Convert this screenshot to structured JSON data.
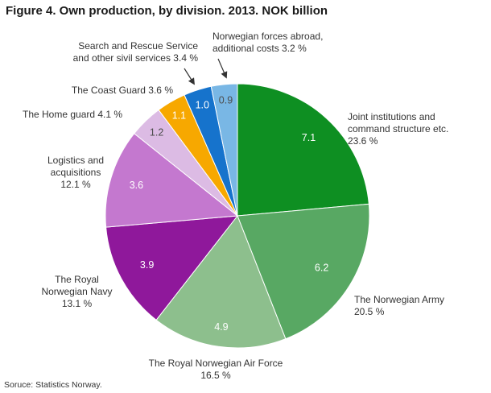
{
  "title": "Figure 4. Own production, by division. 2013. NOK billion",
  "source": "Soruce: Statistics Norway.",
  "chart_data": {
    "type": "pie",
    "title": "Figure 4. Own production, by division. 2013. NOK billion",
    "unit": "NOK billion",
    "legend": "none (direct labels with leader arrows for small slices)",
    "start_position": "12 o'clock, clockwise",
    "slices": [
      {
        "label": "Joint institutions and command structure etc.",
        "pct": 23.6,
        "value": 7.1,
        "color": "#0e8f22",
        "value_color": "#ffffff",
        "ext_label": "Joint institutions and\ncommand structure etc.\n23.6 %"
      },
      {
        "label": "The Norwegian Army",
        "pct": 20.5,
        "value": 6.2,
        "color": "#58a863",
        "value_color": "#ffffff",
        "ext_label": "The Norwegian Army\n20.5 %"
      },
      {
        "label": "The Royal Norwegian Air Force",
        "pct": 16.5,
        "value": 4.9,
        "color": "#8dbf8d",
        "value_color": "#ffffff",
        "ext_label": "The Royal Norwegian Air Force\n16.5 %"
      },
      {
        "label": "The Royal Norwegian Navy",
        "pct": 13.1,
        "value": 3.9,
        "color": "#8f189b",
        "value_color": "#ffffff",
        "ext_label": "The Royal\nNorwegian Navy\n13.1 %"
      },
      {
        "label": "Logistics and acquisitions",
        "pct": 12.1,
        "value": 3.6,
        "color": "#c478cf",
        "value_color": "#ffffff",
        "ext_label": "Logistics and\nacquisitions\n12.1 %"
      },
      {
        "label": "The Home guard",
        "pct": 4.1,
        "value": 1.2,
        "color": "#dcbbe4",
        "value_color": "#4d4d4d",
        "ext_label": "The Home guard 4.1 %"
      },
      {
        "label": "The Coast Guard",
        "pct": 3.6,
        "value": 1.1,
        "color": "#f7a800",
        "value_color": "#ffffff",
        "ext_label": "The Coast Guard 3.6 %"
      },
      {
        "label": "Search and Rescue Service and other sivil services",
        "pct": 3.4,
        "value": 1.0,
        "color": "#1673cc",
        "value_color": "#ffffff",
        "ext_label": "Search and Rescue Service\nand other sivil services 3.4 %"
      },
      {
        "label": "Norwegian forces abroad, additional costs",
        "pct": 3.2,
        "value": 0.9,
        "color": "#79b7e5",
        "value_color": "#4d4d4d",
        "ext_label": "Norwegian forces abroad,\nadditional costs 3.2 %"
      }
    ]
  }
}
